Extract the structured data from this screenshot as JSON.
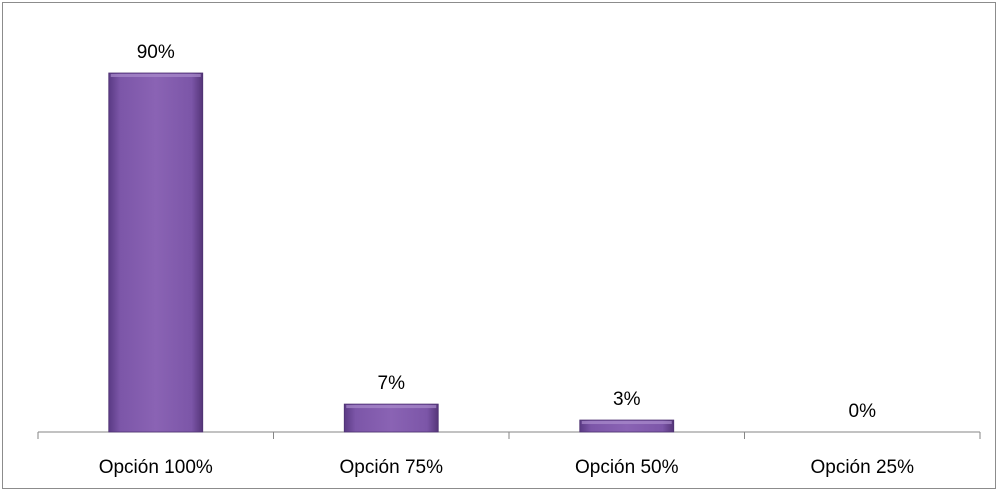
{
  "chart_data": {
    "type": "bar",
    "categories": [
      "Opción 100%",
      "Opción 75%",
      "Opción 50%",
      "Opción 25%"
    ],
    "values": [
      90,
      7,
      3,
      0
    ],
    "data_labels": [
      "90%",
      "7%",
      "3%",
      "0%"
    ],
    "title": "",
    "xlabel": "",
    "ylabel": "",
    "ylim": [
      0,
      100
    ],
    "grid": false,
    "legend": "none",
    "bar_color": "#7f5aa6"
  }
}
